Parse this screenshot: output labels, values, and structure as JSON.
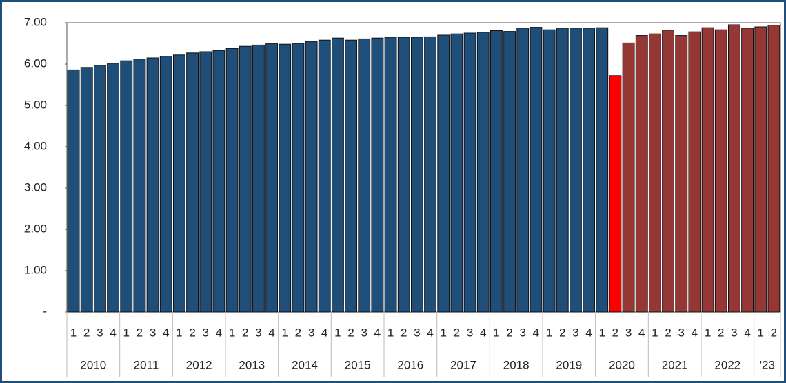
{
  "chart_data": {
    "type": "bar",
    "groups": [
      {
        "name": "2010",
        "categories": [
          "1",
          "2",
          "3",
          "4"
        ]
      },
      {
        "name": "2011",
        "categories": [
          "1",
          "2",
          "3",
          "4"
        ]
      },
      {
        "name": "2012",
        "categories": [
          "1",
          "2",
          "3",
          "4"
        ]
      },
      {
        "name": "2013",
        "categories": [
          "1",
          "2",
          "3",
          "4"
        ]
      },
      {
        "name": "2014",
        "categories": [
          "1",
          "2",
          "3",
          "4"
        ]
      },
      {
        "name": "2015",
        "categories": [
          "1",
          "2",
          "3",
          "4"
        ]
      },
      {
        "name": "2016",
        "categories": [
          "1",
          "2",
          "3",
          "4"
        ]
      },
      {
        "name": "2017",
        "categories": [
          "1",
          "2",
          "3",
          "4"
        ]
      },
      {
        "name": "2018",
        "categories": [
          "1",
          "2",
          "3",
          "4"
        ]
      },
      {
        "name": "2019",
        "categories": [
          "1",
          "2",
          "3",
          "4"
        ]
      },
      {
        "name": "2020",
        "categories": [
          "1",
          "2",
          "3",
          "4"
        ]
      },
      {
        "name": "2021",
        "categories": [
          "1",
          "2",
          "3",
          "4"
        ]
      },
      {
        "name": "2022",
        "categories": [
          "1",
          "2",
          "3",
          "4"
        ]
      },
      {
        "name": "'23",
        "categories": [
          "1",
          "2"
        ]
      }
    ],
    "values": [
      5.86,
      5.92,
      5.97,
      6.02,
      6.08,
      6.12,
      6.15,
      6.19,
      6.22,
      6.27,
      6.3,
      6.33,
      6.38,
      6.43,
      6.46,
      6.49,
      6.48,
      6.5,
      6.54,
      6.58,
      6.63,
      6.58,
      6.61,
      6.63,
      6.65,
      6.65,
      6.65,
      6.66,
      6.7,
      6.73,
      6.75,
      6.77,
      6.81,
      6.79,
      6.87,
      6.89,
      6.83,
      6.87,
      6.87,
      6.87,
      6.88,
      5.72,
      6.51,
      6.69,
      6.73,
      6.82,
      6.69,
      6.78,
      6.88,
      6.83,
      6.95,
      6.87,
      6.9,
      6.94
    ],
    "colors": [
      "#1f4e79",
      "#1f4e79",
      "#1f4e79",
      "#1f4e79",
      "#1f4e79",
      "#1f4e79",
      "#1f4e79",
      "#1f4e79",
      "#1f4e79",
      "#1f4e79",
      "#1f4e79",
      "#1f4e79",
      "#1f4e79",
      "#1f4e79",
      "#1f4e79",
      "#1f4e79",
      "#1f4e79",
      "#1f4e79",
      "#1f4e79",
      "#1f4e79",
      "#1f4e79",
      "#1f4e79",
      "#1f4e79",
      "#1f4e79",
      "#1f4e79",
      "#1f4e79",
      "#1f4e79",
      "#1f4e79",
      "#1f4e79",
      "#1f4e79",
      "#1f4e79",
      "#1f4e79",
      "#1f4e79",
      "#1f4e79",
      "#1f4e79",
      "#1f4e79",
      "#1f4e79",
      "#1f4e79",
      "#1f4e79",
      "#1f4e79",
      "#1f4e79",
      "#ff0000",
      "#953735",
      "#953735",
      "#953735",
      "#953735",
      "#953735",
      "#953735",
      "#953735",
      "#953735",
      "#953735",
      "#953735",
      "#953735",
      "#953735"
    ],
    "ylim": [
      0,
      7
    ],
    "yticks": [
      {
        "value": 0,
        "label": "-"
      },
      {
        "value": 1,
        "label": "1.00"
      },
      {
        "value": 2,
        "label": "2.00"
      },
      {
        "value": 3,
        "label": "3.00"
      },
      {
        "value": 4,
        "label": "4.00"
      },
      {
        "value": 5,
        "label": "5.00"
      },
      {
        "value": 6,
        "label": "6.00"
      },
      {
        "value": 7,
        "label": "7.00"
      }
    ]
  }
}
